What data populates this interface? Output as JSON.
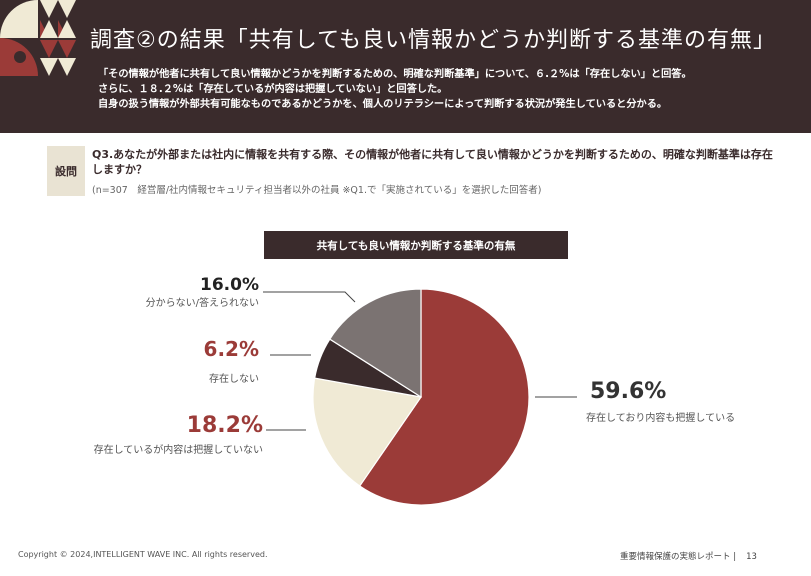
{
  "header": {
    "title": "調査②の結果「共有しても良い情報かどうか判断する基準の有無」",
    "summary": [
      "「その情報が他者に共有して良い情報かどうかを判断するための、明確な判断基準」について、６.２%は「存在しない」と回答。",
      "さらに、１８.２%は「存在しているが内容は把握していない」と回答した。",
      "自身の扱う情報が外部共有可能なものであるかどうかを、個人のリテラシーによって判断する状況が発生していると分かる。"
    ]
  },
  "question": {
    "badge": "設問",
    "text": "Q3.あなたが外部または社内に情報を共有する際、その情報が他者に共有して良い情報かどうかを判断するための、明確な判断基準は存在しますか？",
    "note": "(n=307　経営層/社内情報セキュリティ担当者以外の社員 ※Q1.で「実施されている」を選択した回答者)"
  },
  "colors": {
    "header_bg": "#3a2b2c",
    "accent_red": "#9b3b38",
    "dark": "#3a2b2c",
    "cream": "#f0ead5",
    "gray": "#7b7372"
  },
  "chart_data": {
    "type": "pie",
    "title": "共有しても良い情報か判断する基準の有無",
    "start_angle_deg": 0,
    "direction": "clockwise",
    "slices": [
      {
        "label": "存在しており内容も把握している",
        "value": 59.6,
        "display": "59.6%",
        "color": "#9b3b38"
      },
      {
        "label": "存在しているが内容は把握していない",
        "value": 18.2,
        "display": "18.2%",
        "color": "#f0ead5"
      },
      {
        "label": "存在しない",
        "value": 6.2,
        "display": "6.2%",
        "color": "#3a2b2c"
      },
      {
        "label": "分からない/答えられない",
        "value": 16.0,
        "display": "16.0%",
        "color": "#7b7372"
      }
    ]
  },
  "footer": {
    "copyright": "Copyright © 2024,INTELLIGENT WAVE INC. All rights reserved.",
    "report": "重要情報保護の実態レポート |",
    "page": "13"
  }
}
